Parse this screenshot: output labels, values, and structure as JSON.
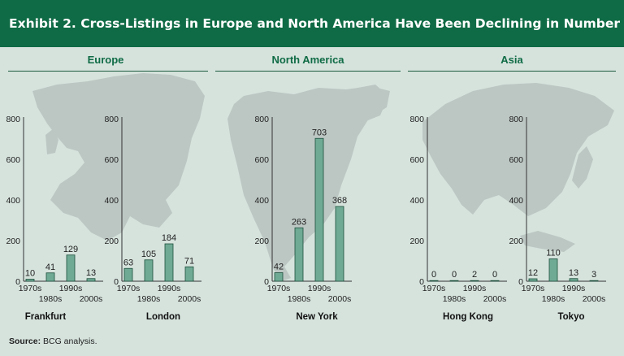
{
  "header": {
    "title": "Exhibit 2. Cross-Listings in Europe and North America Have Been Declining in Number"
  },
  "regions": [
    {
      "name": "Europe"
    },
    {
      "name": "North America"
    },
    {
      "name": "Asia"
    }
  ],
  "source": {
    "label": "Source:",
    "text": "BCG analysis."
  },
  "colors": {
    "header_bg": "#0f6b45",
    "bar_fill": "#6faa94",
    "bar_stroke": "#1d4f3d",
    "map": "#bcc7c3",
    "background": "#d6e3dd"
  },
  "chart_data": [
    {
      "type": "bar",
      "title": "Frankfurt",
      "region": "Europe",
      "categories": [
        "1970s",
        "1980s",
        "1990s",
        "2000s"
      ],
      "values": [
        10,
        41,
        129,
        13
      ],
      "ylim": [
        0,
        800
      ],
      "yticks": [
        0,
        200,
        400,
        600,
        800
      ]
    },
    {
      "type": "bar",
      "title": "London",
      "region": "Europe",
      "categories": [
        "1970s",
        "1980s",
        "1990s",
        "2000s"
      ],
      "values": [
        63,
        105,
        184,
        71
      ],
      "ylim": [
        0,
        800
      ],
      "yticks": [
        0,
        200,
        400,
        600,
        800
      ]
    },
    {
      "type": "bar",
      "title": "New York",
      "region": "North America",
      "categories": [
        "1970s",
        "1980s",
        "1990s",
        "2000s"
      ],
      "values": [
        42,
        263,
        703,
        368
      ],
      "ylim": [
        0,
        800
      ],
      "yticks": [
        0,
        200,
        400,
        600,
        800
      ]
    },
    {
      "type": "bar",
      "title": "Hong Kong",
      "region": "Asia",
      "categories": [
        "1970s",
        "1980s",
        "1990s",
        "2000s"
      ],
      "values": [
        0,
        0,
        2,
        0
      ],
      "ylim": [
        0,
        800
      ],
      "yticks": [
        0,
        200,
        400,
        600,
        800
      ]
    },
    {
      "type": "bar",
      "title": "Tokyo",
      "region": "Asia",
      "categories": [
        "1970s",
        "1980s",
        "1990s",
        "2000s"
      ],
      "values": [
        12,
        110,
        13,
        3
      ],
      "ylim": [
        0,
        800
      ],
      "yticks": [
        0,
        200,
        400,
        600,
        800
      ]
    }
  ]
}
